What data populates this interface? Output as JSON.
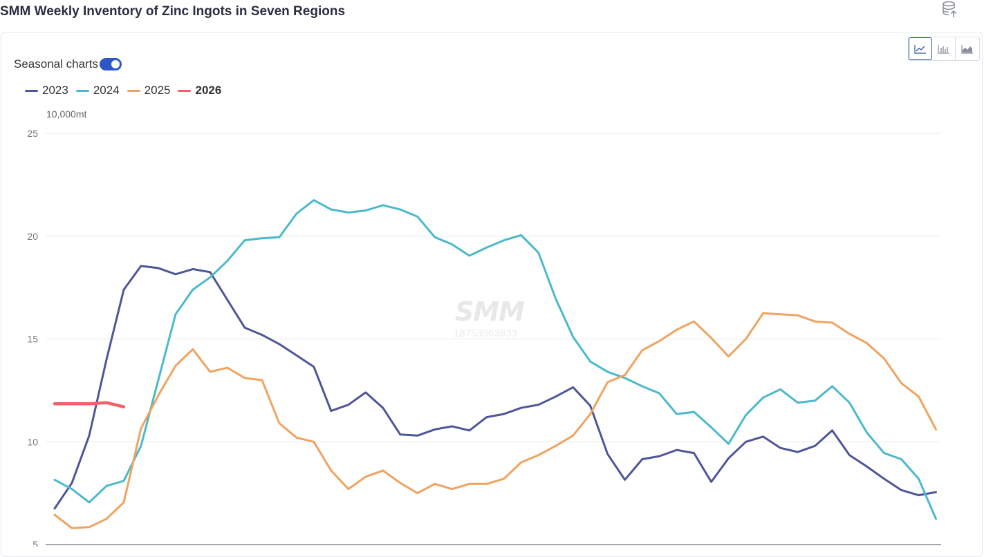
{
  "header": {
    "title": "SMM Weekly Inventory of Zinc Ingots in Seven Regions",
    "export_icon": "database-export-icon"
  },
  "controls": {
    "seasonal_label": "Seasonal charts",
    "seasonal_on": true,
    "views": [
      {
        "icon": "line-chart-icon",
        "active": true
      },
      {
        "icon": "bar-chart-icon",
        "active": false
      },
      {
        "icon": "area-chart-icon",
        "active": false
      }
    ]
  },
  "watermark": {
    "logo": "SMM",
    "number": "18753563933"
  },
  "chart_data": {
    "type": "line",
    "unit": "10,000mt",
    "ylim": [
      5,
      25
    ],
    "yticks": [
      5,
      10,
      15,
      20,
      25
    ],
    "grid": true,
    "legend_position": "top-left",
    "series": [
      {
        "name": "2023",
        "color": "#4e5599",
        "values": [
          6.75,
          8.0,
          10.3,
          14.0,
          17.4,
          18.55,
          18.45,
          18.15,
          18.4,
          18.25,
          16.9,
          15.55,
          15.2,
          14.75,
          14.2,
          13.65,
          11.5,
          11.8,
          12.4,
          11.65,
          10.35,
          10.3,
          10.6,
          10.75,
          10.55,
          11.2,
          11.35,
          11.65,
          11.8,
          12.2,
          12.65,
          11.75,
          9.4,
          8.15,
          9.15,
          9.3,
          9.6,
          9.45,
          8.05,
          9.2,
          10.0,
          10.25,
          9.7,
          9.5,
          9.8,
          10.55,
          9.35,
          8.8,
          8.2,
          7.65,
          7.4,
          7.55
        ]
      },
      {
        "name": "2024",
        "color": "#4ab9cb",
        "values": [
          8.15,
          7.7,
          7.05,
          7.85,
          8.1,
          9.8,
          13.0,
          16.2,
          17.4,
          18.0,
          18.8,
          19.8,
          19.9,
          19.95,
          21.1,
          21.75,
          21.3,
          21.15,
          21.25,
          21.5,
          21.3,
          20.95,
          19.95,
          19.6,
          19.05,
          19.45,
          19.8,
          20.05,
          19.2,
          16.95,
          15.1,
          13.9,
          13.4,
          13.1,
          12.7,
          12.35,
          11.35,
          11.45,
          10.7,
          9.9,
          11.3,
          12.15,
          12.55,
          11.9,
          12.0,
          12.7,
          11.9,
          10.45,
          9.45,
          9.15,
          8.2,
          6.25
        ]
      },
      {
        "name": "2025",
        "color": "#f0a35f",
        "values": [
          6.45,
          5.8,
          5.85,
          6.25,
          7.05,
          10.65,
          12.25,
          13.7,
          14.5,
          13.4,
          13.6,
          13.1,
          13.0,
          10.9,
          10.2,
          10.0,
          8.6,
          7.7,
          8.3,
          8.6,
          8.0,
          7.5,
          7.95,
          7.7,
          7.95,
          7.95,
          8.2,
          9.0,
          9.35,
          9.8,
          10.3,
          11.35,
          12.9,
          13.25,
          14.45,
          14.9,
          15.45,
          15.85,
          15.05,
          14.15,
          15.0,
          16.25,
          16.2,
          16.15,
          15.85,
          15.8,
          15.25,
          14.8,
          14.05,
          12.85,
          12.2,
          10.6
        ]
      },
      {
        "name": "2026",
        "color": "#f2606b",
        "values": [
          11.85,
          11.85,
          11.85,
          11.9,
          11.7
        ]
      }
    ]
  }
}
